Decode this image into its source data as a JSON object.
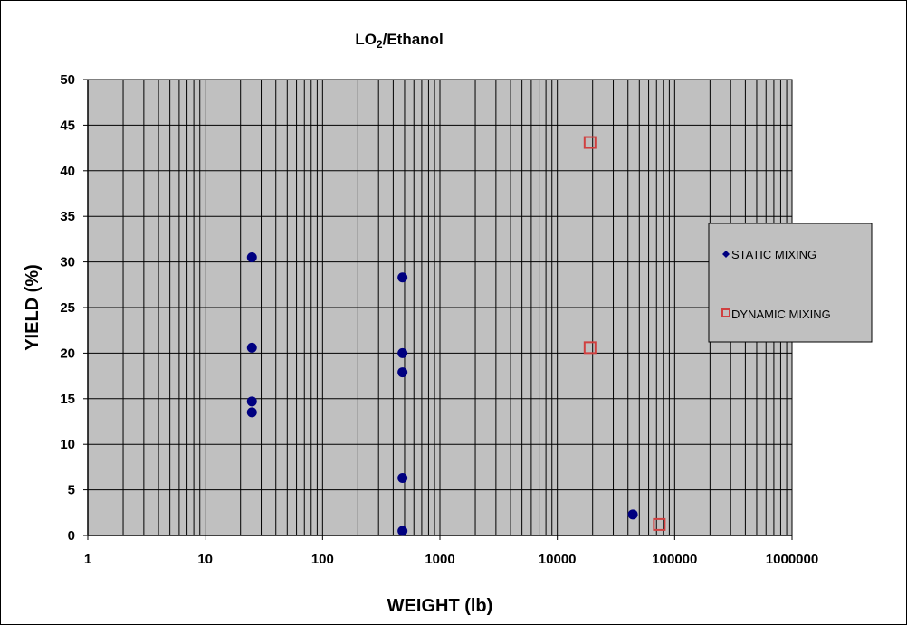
{
  "chart_data": {
    "type": "scatter",
    "title_main": "LO",
    "title_sub": "2",
    "title_rest": "/Ethanol",
    "xlabel": "WEIGHT (lb)",
    "ylabel": "YIELD (%)",
    "x_scale": "log",
    "xlim": [
      1,
      1000000
    ],
    "ylim": [
      0,
      50
    ],
    "x_ticks": [
      "1",
      "10",
      "100",
      "1000",
      "10000",
      "100000",
      "1000000"
    ],
    "y_ticks": [
      "0",
      "5",
      "10",
      "15",
      "20",
      "25",
      "30",
      "35",
      "40",
      "45",
      "50"
    ],
    "grid": true,
    "plot_background": "#c0c0c0",
    "legend_placement": "right",
    "series": [
      {
        "name": "STATIC MIXING",
        "marker": "diamond",
        "color": "#000080",
        "points": [
          {
            "x": 25,
            "y": 30.5
          },
          {
            "x": 25,
            "y": 20.6
          },
          {
            "x": 25,
            "y": 14.7
          },
          {
            "x": 25,
            "y": 13.5
          },
          {
            "x": 480,
            "y": 28.3
          },
          {
            "x": 480,
            "y": 20.0
          },
          {
            "x": 480,
            "y": 17.9
          },
          {
            "x": 480,
            "y": 6.3
          },
          {
            "x": 480,
            "y": 0.5
          },
          {
            "x": 44000,
            "y": 2.3
          }
        ]
      },
      {
        "name": "DYNAMIC MIXING",
        "marker": "square",
        "color": "#d04040",
        "points": [
          {
            "x": 19000,
            "y": 43.1
          },
          {
            "x": 19000,
            "y": 20.6
          },
          {
            "x": 74000,
            "y": 1.2
          }
        ]
      }
    ]
  }
}
